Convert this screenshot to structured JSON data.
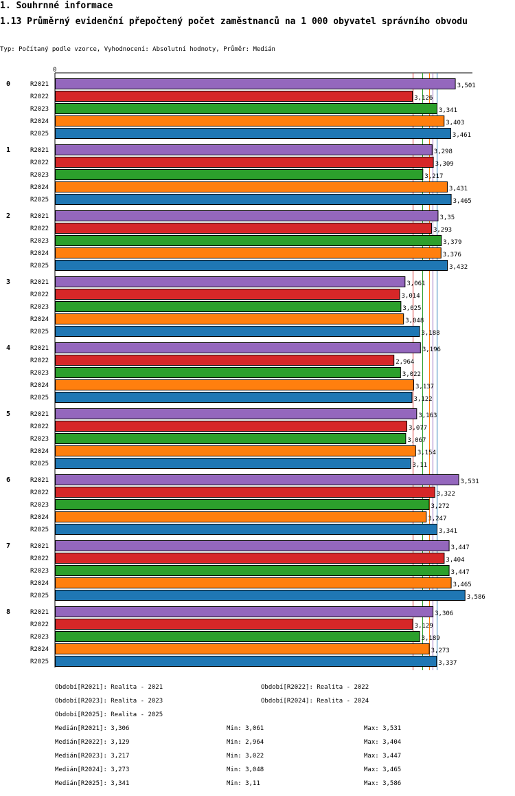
{
  "header": {
    "section": "1. Souhrnné informace",
    "title": "1.13 Průměrný evidenční přepočtený počet zaměstnanců na 1 000 obyvatel správního obvodu",
    "subtitle": "Typ: Počítaný podle vzorce, Vyhodnocení: Absolutní hodnoty, Průměr: Medián"
  },
  "chart_data": {
    "type": "bar",
    "orientation": "horizontal",
    "xaxis_zero_label": "0",
    "xlim": [
      0,
      3.6
    ],
    "groups": [
      "0",
      "1",
      "2",
      "3",
      "4",
      "5",
      "6",
      "7",
      "8"
    ],
    "series": [
      {
        "name": "R2021",
        "color": "#9467bd",
        "values": [
          3.501,
          3.298,
          3.35,
          3.061,
          3.196,
          3.163,
          3.531,
          3.447,
          3.306
        ],
        "labels": [
          "3,501",
          "3,298",
          "3,35",
          "3,061",
          "3,196",
          "3,163",
          "3,531",
          "3,447",
          "3,306"
        ]
      },
      {
        "name": "R2022",
        "color": "#d62728",
        "values": [
          3.126,
          3.309,
          3.293,
          3.014,
          2.964,
          3.077,
          3.322,
          3.404,
          3.129
        ],
        "labels": [
          "3,126",
          "3,309",
          "3,293",
          "3,014",
          "2,964",
          "3,077",
          "3,322",
          "3,404",
          "3,129"
        ]
      },
      {
        "name": "R2023",
        "color": "#2ca02c",
        "values": [
          3.341,
          3.217,
          3.379,
          3.025,
          3.022,
          3.067,
          3.272,
          3.447,
          3.189
        ],
        "labels": [
          "3,341",
          "3,217",
          "3,379",
          "3,025",
          "3,022",
          "3,067",
          "3,272",
          "3,447",
          "3,189"
        ]
      },
      {
        "name": "R2024",
        "color": "#ff7f0e",
        "values": [
          3.403,
          3.431,
          3.376,
          3.048,
          3.137,
          3.154,
          3.247,
          3.465,
          3.273
        ],
        "labels": [
          "3,403",
          "3,431",
          "3,376",
          "3,048",
          "3,137",
          "3,154",
          "3,247",
          "3,465",
          "3,273"
        ]
      },
      {
        "name": "R2025",
        "color": "#1f77b4",
        "values": [
          3.461,
          3.465,
          3.432,
          3.188,
          3.122,
          3.11,
          3.341,
          3.586,
          3.337
        ],
        "labels": [
          "3,461",
          "3,465",
          "3,432",
          "3,188",
          "3,122",
          "3,11",
          "3,341",
          "3,586",
          "3,337"
        ]
      }
    ],
    "median_lines": [
      {
        "series": "R2021",
        "value": 3.306,
        "color": "#9467bd"
      },
      {
        "series": "R2022",
        "value": 3.129,
        "color": "#d62728"
      },
      {
        "series": "R2023",
        "value": 3.217,
        "color": "#2ca02c"
      },
      {
        "series": "R2024",
        "value": 3.273,
        "color": "#ff7f0e"
      },
      {
        "series": "R2025",
        "value": 3.341,
        "color": "#1f77b4"
      }
    ]
  },
  "legend": {
    "periods": [
      "Období[R2021]: Realita - 2021",
      "Období[R2022]: Realita - 2022",
      "Období[R2023]: Realita - 2023",
      "Období[R2024]: Realita - 2024",
      "Období[R2025]: Realita - 2025"
    ],
    "stats": [
      {
        "median": "Medián[R2021]: 3,306",
        "min": "Min: 3,061",
        "max": "Max: 3,531"
      },
      {
        "median": "Medián[R2022]: 3,129",
        "min": "Min: 2,964",
        "max": "Max: 3,404"
      },
      {
        "median": "Medián[R2023]: 3,217",
        "min": "Min: 3,022",
        "max": "Max: 3,447"
      },
      {
        "median": "Medián[R2024]: 3,273",
        "min": "Min: 3,048",
        "max": "Max: 3,465"
      },
      {
        "median": "Medián[R2025]: 3,341",
        "min": "Min: 3,11",
        "max": "Max: 3,586"
      }
    ]
  }
}
